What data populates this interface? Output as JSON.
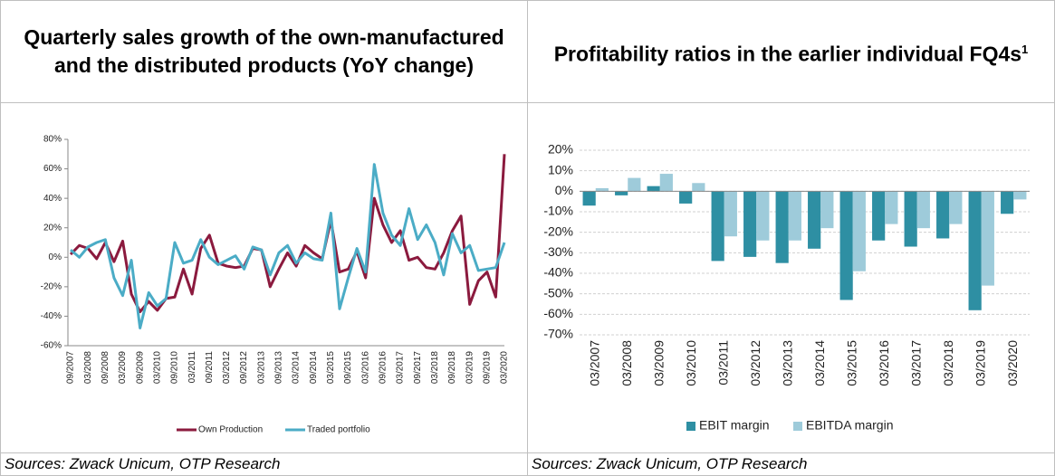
{
  "chart_data": [
    {
      "type": "line",
      "title": "Quarterly sales growth of the own-manufactured and the distributed products (YoY change)",
      "source": "Sources: Zwack Unicum, OTP Research",
      "categories": [
        "09/2007",
        null,
        "03/2008",
        null,
        "09/2008",
        null,
        "03/2009",
        null,
        "09/2009",
        null,
        "03/2010",
        null,
        "09/2010",
        null,
        "03/2011",
        null,
        "09/2011",
        null,
        "03/2012",
        null,
        "09/2012",
        null,
        "03/2013",
        null,
        "09/2013",
        null,
        "03/2014",
        null,
        "09/2014",
        null,
        "03/2015",
        null,
        "09/2015",
        null,
        "03/2016",
        null,
        "09/2016",
        null,
        "03/2017",
        null,
        "09/2017",
        null,
        "03/2018",
        null,
        "09/2018",
        null,
        "03/2019",
        null,
        "09/2019",
        null,
        "03/2020"
      ],
      "series": [
        {
          "name": "Own Production",
          "color": "#8b1a3e",
          "values": [
            2,
            8,
            6,
            -1,
            10,
            -3,
            11,
            -25,
            -37,
            -30,
            -36,
            -28,
            -27,
            -8,
            -25,
            6,
            15,
            -4,
            -6,
            -7,
            -6,
            6,
            5,
            -20,
            -8,
            3,
            -6,
            8,
            3,
            -1,
            25,
            -10,
            -8,
            4,
            -14,
            40,
            22,
            10,
            18,
            -2,
            0,
            -7,
            -8,
            3,
            18,
            28,
            -32,
            -16,
            -10,
            -27,
            70
          ]
        },
        {
          "name": "Traded portfolio",
          "color": "#4bacc6",
          "values": [
            5,
            0,
            7,
            10,
            12,
            -14,
            -26,
            -2,
            -48,
            -24,
            -33,
            -28,
            10,
            -4,
            -2,
            12,
            0,
            -5,
            -2,
            1,
            -8,
            7,
            5,
            -12,
            3,
            8,
            -4,
            3,
            -1,
            -2,
            30,
            -35,
            -14,
            6,
            -10,
            63,
            30,
            15,
            8,
            33,
            12,
            22,
            10,
            -12,
            16,
            3,
            8,
            -9,
            -8,
            -7,
            10
          ]
        }
      ],
      "ylim": [
        -60,
        80
      ],
      "yticks": [
        {
          "value": -60,
          "label": "-60%"
        },
        {
          "value": -40,
          "label": "-40%"
        },
        {
          "value": -20,
          "label": "-20%"
        },
        {
          "value": 0,
          "label": "0%"
        },
        {
          "value": 20,
          "label": "20%"
        },
        {
          "value": 40,
          "label": "40%"
        },
        {
          "value": 60,
          "label": "60%"
        },
        {
          "value": 80,
          "label": "80%"
        }
      ],
      "grid": false,
      "legend": "bottom"
    },
    {
      "type": "bar",
      "title": "Profitability ratios in the earlier individual FQ4s",
      "title_footnote": "1",
      "source": "Sources: Zwack Unicum, OTP Research",
      "categories": [
        "03/2007",
        "03/2008",
        "03/2009",
        "03/2010",
        "03/2011",
        "03/2012",
        "03/2013",
        "03/2014",
        "03/2015",
        "03/2016",
        "03/2017",
        "03/2018",
        "03/2019",
        "03/2020"
      ],
      "series": [
        {
          "name": "EBIT margin",
          "color": "#2e8fa3",
          "values": [
            -7,
            -2,
            2.5,
            -6,
            -34,
            -32,
            -35,
            -28,
            -53,
            -24,
            -27,
            -23,
            -58,
            -11
          ]
        },
        {
          "name": "EBITDA margin",
          "color": "#9ecbda",
          "values": [
            1.5,
            6.5,
            8.5,
            4,
            -22,
            -24,
            -24,
            -18,
            -39,
            -16,
            -18,
            -16,
            -46,
            -4
          ]
        }
      ],
      "ylim": [
        -70,
        20
      ],
      "yticks": [
        {
          "value": -70,
          "label": "-70%"
        },
        {
          "value": -60,
          "label": "-60%"
        },
        {
          "value": -50,
          "label": "-50%"
        },
        {
          "value": -40,
          "label": "-40%"
        },
        {
          "value": -30,
          "label": "-30%"
        },
        {
          "value": -20,
          "label": "-20%"
        },
        {
          "value": -10,
          "label": "-10%"
        },
        {
          "value": 0,
          "label": "0%"
        },
        {
          "value": 10,
          "label": "10%"
        },
        {
          "value": 20,
          "label": "20%"
        }
      ],
      "grid": true,
      "legend": "bottom"
    }
  ]
}
